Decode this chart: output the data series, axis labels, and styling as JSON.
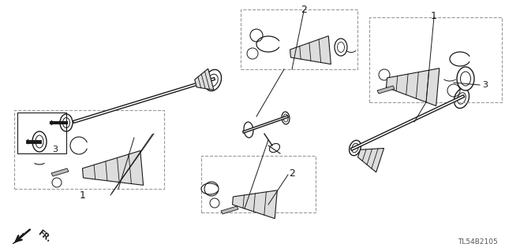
{
  "background_color": "#ffffff",
  "line_color": "#1a1a1a",
  "dash_color": "#888888",
  "part_code": "TL54B2105",
  "fr_label": "FR.",
  "figsize": [
    6.4,
    3.19
  ],
  "dpi": 100
}
